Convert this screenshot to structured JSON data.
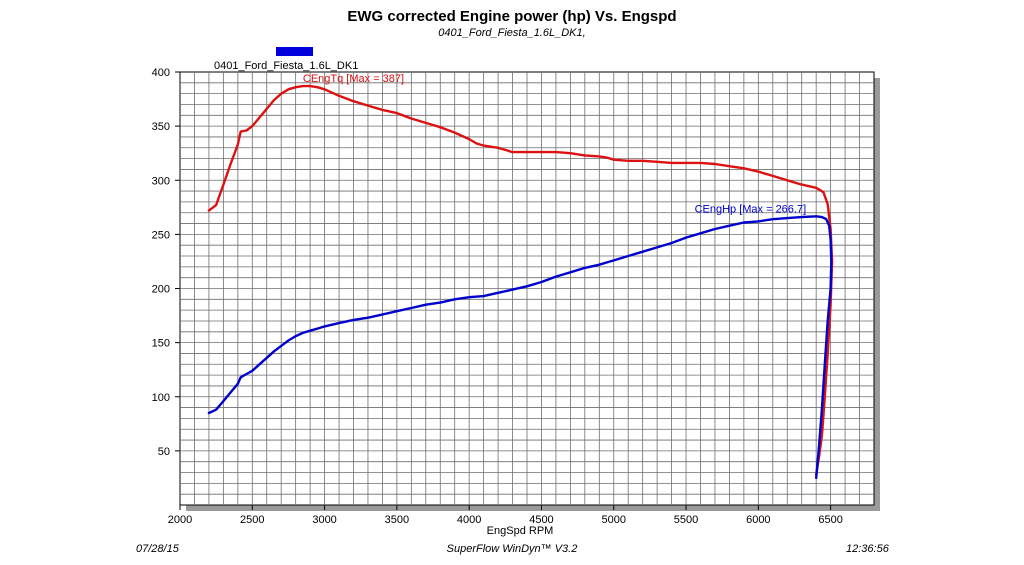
{
  "chart_data": {
    "type": "line",
    "title": "EWG corrected Engine power (hp) Vs. Engspd",
    "subtitle": "0401_Ford_Fiesta_1.6L_DK1,",
    "xlabel": "EngSpd RPM",
    "ylabel": "",
    "xlim": [
      2000,
      6800
    ],
    "ylim": [
      0,
      400
    ],
    "x_ticks": [
      2000,
      2500,
      3000,
      3500,
      4000,
      4500,
      5000,
      5500,
      6000,
      6500
    ],
    "y_ticks": [
      50,
      100,
      150,
      200,
      250,
      300,
      350,
      400
    ],
    "grid": true,
    "legend": {
      "position": "top-left",
      "label": "0401_Ford_Fiesta_1.6L_DK1",
      "color": "#0000dd"
    },
    "series": [
      {
        "name": "CEngTq",
        "color": "#dd1111",
        "annotation": "CEngTq [Max = 387]",
        "x": [
          2200,
          2250,
          2300,
          2350,
          2400,
          2420,
          2460,
          2500,
          2550,
          2600,
          2650,
          2700,
          2750,
          2800,
          2850,
          2900,
          2950,
          3000,
          3100,
          3200,
          3300,
          3400,
          3500,
          3600,
          3700,
          3800,
          3900,
          4000,
          4050,
          4100,
          4200,
          4250,
          4300,
          4350,
          4400,
          4500,
          4600,
          4700,
          4800,
          4900,
          4950,
          5000,
          5100,
          5200,
          5300,
          5400,
          5500,
          5600,
          5700,
          5800,
          5900,
          6000,
          6100,
          6200,
          6300,
          6400,
          6450,
          6480,
          6500,
          6510,
          6500,
          6480,
          6460,
          6440,
          6420,
          6400
        ],
        "y": [
          272,
          277,
          296,
          315,
          333,
          345,
          346,
          350,
          358,
          366,
          374,
          380,
          384,
          386,
          387,
          387,
          386,
          384,
          378,
          373,
          369,
          365,
          362,
          357,
          353,
          349,
          344,
          338,
          334,
          332,
          330,
          328,
          326,
          326,
          326,
          326,
          326,
          325,
          323,
          322,
          321,
          319,
          318,
          318,
          317,
          316,
          316,
          316,
          315,
          313,
          311,
          308,
          304,
          300,
          296,
          293,
          289,
          278,
          255,
          225,
          185,
          140,
          100,
          65,
          45,
          28
        ]
      },
      {
        "name": "CEngHp",
        "color": "#0000cc",
        "annotation": "CEngHp [Max = 266.7]",
        "x": [
          2200,
          2250,
          2300,
          2350,
          2400,
          2420,
          2460,
          2500,
          2550,
          2600,
          2650,
          2700,
          2750,
          2800,
          2850,
          2900,
          2950,
          3000,
          3100,
          3200,
          3300,
          3400,
          3500,
          3600,
          3700,
          3800,
          3900,
          4000,
          4100,
          4200,
          4300,
          4400,
          4500,
          4600,
          4700,
          4800,
          4900,
          4950,
          5000,
          5100,
          5200,
          5300,
          5400,
          5500,
          5600,
          5700,
          5800,
          5900,
          6000,
          6100,
          6200,
          6300,
          6400,
          6440,
          6470,
          6490,
          6500,
          6505,
          6500,
          6480,
          6460,
          6440,
          6420,
          6400
        ],
        "y": [
          85,
          88,
          96,
          104,
          112,
          118,
          121,
          124,
          130,
          136,
          142,
          147,
          152,
          156,
          159,
          161,
          163,
          165,
          168,
          171,
          173,
          176,
          179,
          182,
          185,
          187,
          190,
          192,
          193,
          196,
          199,
          202,
          206,
          211,
          215,
          219,
          222,
          224,
          226,
          230,
          234,
          238,
          242,
          247,
          251,
          255,
          258,
          261,
          262,
          264,
          265,
          266,
          266.7,
          266,
          264,
          258,
          245,
          225,
          200,
          170,
          130,
          90,
          55,
          25
        ]
      }
    ]
  },
  "footer": {
    "date": "07/28/15",
    "software": "SuperFlow WinDyn™ V3.2",
    "time": "12:36:56"
  }
}
